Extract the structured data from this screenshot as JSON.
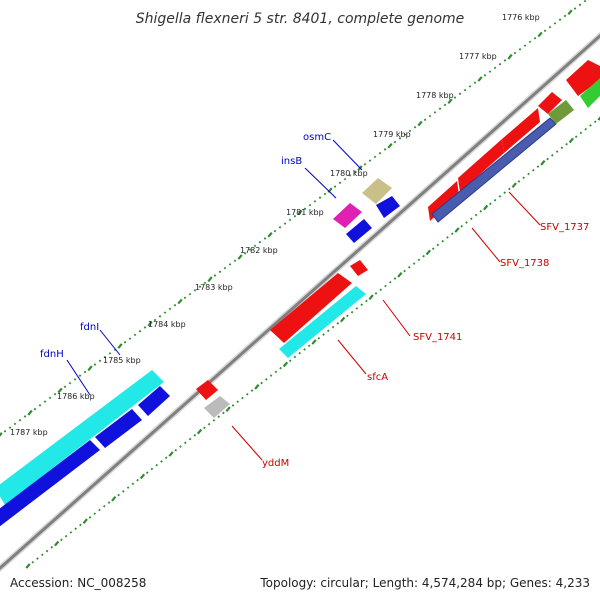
{
  "title": "Shigella flexneri 5 str. 8401, complete genome",
  "footer": {
    "accession": "Accession: NC_008258",
    "summary": "Topology: circular; Length: 4,574,284 bp; Genes: 4,233"
  },
  "scale_labels": [
    "1776 kbp",
    "1777 kbp",
    "1778 kbp",
    "1779 kbp",
    "1780 kbp",
    "1781 kbp",
    "1782 kbp",
    "1783 kbp",
    "1784 kbp",
    "1785 kbp",
    "1786 kbp",
    "1787 kbp"
  ],
  "gene_labels": {
    "osmC": "osmC",
    "insB": "insB",
    "fdnI": "fdnI",
    "fdnH": "fdnH",
    "SFV_1737": "SFV_1737",
    "SFV_1738": "SFV_1738",
    "SFV_1741": "SFV_1741",
    "sfcA": "sfcA",
    "yddM": "yddM"
  },
  "colors": {
    "backbone": "#808080",
    "tick": "#2e8b2e",
    "red": "#ee1111",
    "cyan": "#22e8e8",
    "blue": "#1111dd",
    "navy_blue": "#4a5cae",
    "khaki": "#c8c088",
    "magenta": "#e020b0",
    "green": "#33cc33",
    "olive": "#6e9a3a",
    "gray": "#bbbbbb",
    "label_blue": "#0000cc",
    "label_red": "#cc0000"
  }
}
